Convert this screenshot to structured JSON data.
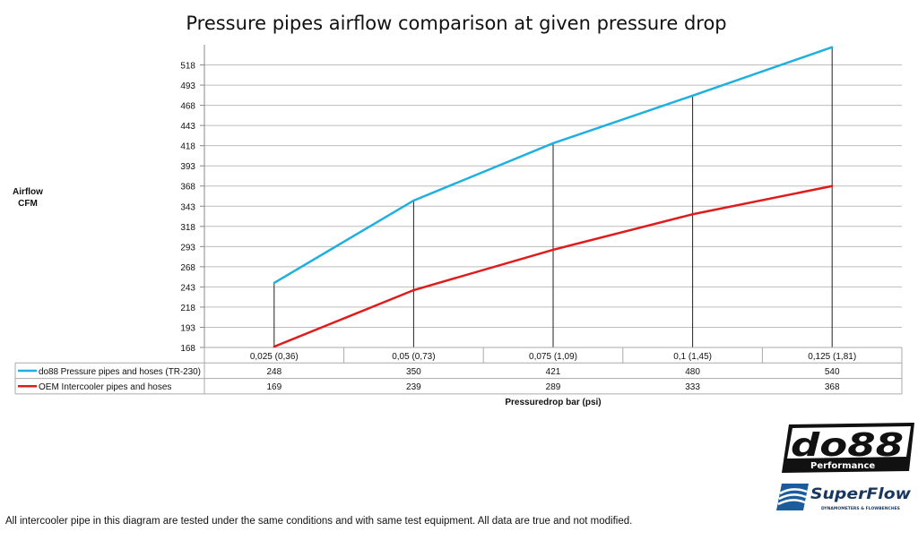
{
  "chart_data": {
    "type": "line",
    "title": "Pressure pipes airflow comparison at given pressure drop",
    "ylabel": "Airflow CFM",
    "ylabel_lines": [
      "Airflow",
      "CFM"
    ],
    "xlabel": "Pressuredrop bar (psi)",
    "categories": [
      "0,025 (0,36)",
      "0,05 (0,73)",
      "0,075 (1,09)",
      "0,1 (1,45)",
      "0,125 (1,81)"
    ],
    "yticks": [
      168,
      193,
      218,
      243,
      268,
      293,
      318,
      343,
      368,
      393,
      418,
      443,
      468,
      493,
      518
    ],
    "ylim": [
      168,
      543
    ],
    "grid": true,
    "drop_lines": true,
    "data_table": true,
    "series": [
      {
        "name": "do88 Pressure pipes and hoses (TR-230)",
        "values": [
          248,
          350,
          421,
          480,
          540
        ],
        "color": "#1fb0e0"
      },
      {
        "name": "OEM Intercooler pipes and hoses",
        "values": [
          169,
          239,
          289,
          333,
          368
        ],
        "color": "#e01b1b"
      }
    ]
  },
  "footnote": "All intercooler pipe in this diagram are tested under the same conditions and with same test equipment. All data are true and not modified.",
  "logos": {
    "do88": "do88 Performance",
    "superflow": "SuperFlow DYNAMOMETERS & FLOWBENCHES"
  }
}
